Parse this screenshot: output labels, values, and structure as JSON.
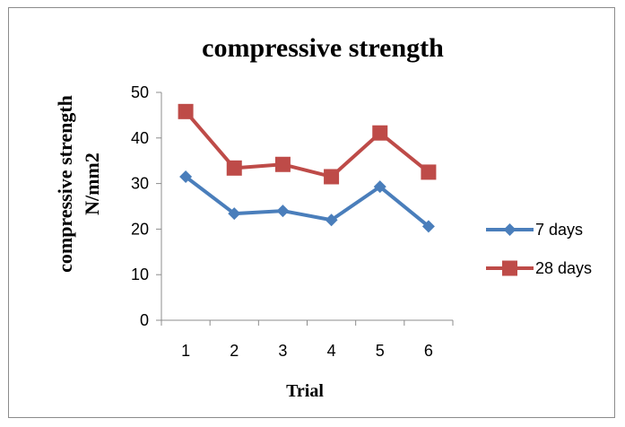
{
  "chart_data": {
    "type": "line",
    "title": "compressive strength",
    "ylabel": [
      "compressive strength",
      "N/mm2"
    ],
    "xlabel": "Trial",
    "categories": [
      "1",
      "2",
      "3",
      "4",
      "5",
      "6"
    ],
    "ylim": [
      0,
      50
    ],
    "yticks": [
      0,
      10,
      20,
      30,
      40,
      50
    ],
    "grid": false,
    "legend_position": "right",
    "series": [
      {
        "name": "7 days",
        "values": [
          31.5,
          23.4,
          24.0,
          22.0,
          29.3,
          20.6
        ],
        "color": "#4a7ebb",
        "marker": "diamond"
      },
      {
        "name": "28 days",
        "values": [
          45.8,
          33.4,
          34.2,
          31.5,
          41.1,
          32.5
        ],
        "color": "#be4b48",
        "marker": "square"
      }
    ]
  }
}
